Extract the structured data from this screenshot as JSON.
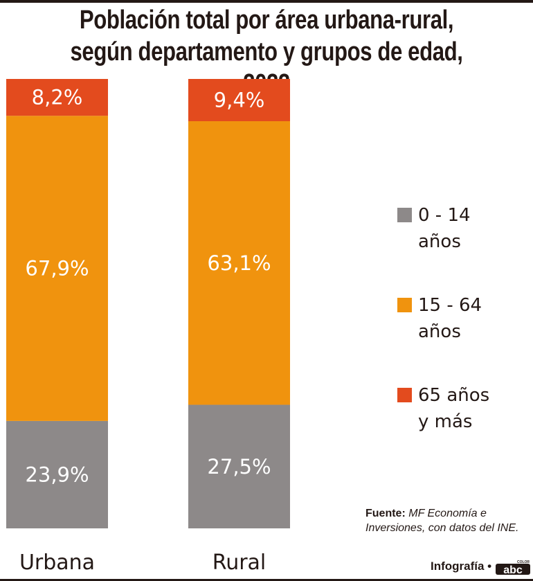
{
  "title_lines": [
    "Población total por área urbana-rural,",
    "según departamento y grupos de edad, 2022"
  ],
  "chart_data": {
    "type": "bar",
    "stacked": true,
    "title": "Población total por área urbana-rural, según departamento y grupos de edad, 2022",
    "categories": [
      "Urbana",
      "Rural"
    ],
    "series": [
      {
        "name": "0 - 14 años",
        "color": "#8d8989",
        "values": [
          23.9,
          27.5
        ],
        "labels": [
          "23,9%",
          "27,5%"
        ]
      },
      {
        "name": "15 - 64 años",
        "color": "#f0930e",
        "values": [
          67.9,
          63.1
        ],
        "labels": [
          "67,9%",
          "63,1%"
        ]
      },
      {
        "name": "65 años y más",
        "color": "#e34b1e",
        "values": [
          8.2,
          9.4
        ],
        "labels": [
          "8,2%",
          "9,4%"
        ]
      }
    ],
    "ylim": [
      0,
      100
    ],
    "unit": "%",
    "grid": false,
    "legend_position": "right"
  },
  "legend": [
    {
      "line1": "0 - 14",
      "line2": "años",
      "color": "#8d8989"
    },
    {
      "line1": "15 - 64",
      "line2": "años",
      "color": "#f0930e"
    },
    {
      "line1": "65 años",
      "line2": "y más",
      "color": "#e34b1e"
    }
  ],
  "source": {
    "label": "Fuente:",
    "text_line1": "MF Economía e",
    "text_line2": "Inversiones, con datos del INE."
  },
  "credit": {
    "label": "Infografía •",
    "logo_text": "abc",
    "logo_sub": "COLOR"
  }
}
